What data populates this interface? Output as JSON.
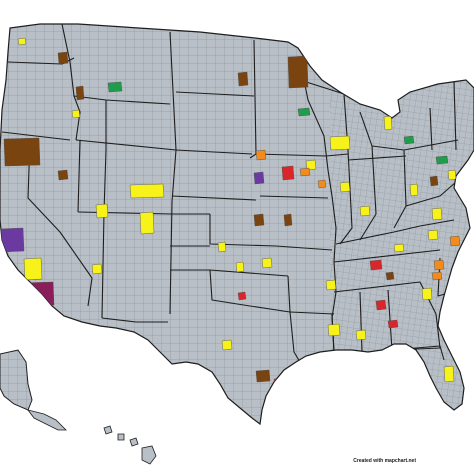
{
  "credit": "Created with mapchart.net",
  "colors": {
    "background": "#ffffff",
    "land": "#b8bfc6",
    "county_border": "#75808a",
    "state_border": "#1e1e1e",
    "yellow": "#f6f21a",
    "brown": "#7a4410",
    "green": "#1f9c4c",
    "orange": "#f28a1c",
    "red": "#d8262a",
    "purple": "#6a3aa0",
    "maroon": "#8a1e5a",
    "blue": "#1f3ca8"
  },
  "highlighted_counties": [
    {
      "region": "Washington",
      "color": "yellow"
    },
    {
      "region": "Montana",
      "color": "brown"
    },
    {
      "region": "Montana",
      "color": "green"
    },
    {
      "region": "Idaho",
      "color": "brown"
    },
    {
      "region": "Idaho",
      "color": "yellow"
    },
    {
      "region": "Oregon",
      "color": "brown"
    },
    {
      "region": "Nevada",
      "color": "brown"
    },
    {
      "region": "Nevada",
      "color": "yellow"
    },
    {
      "region": "California",
      "color": "purple"
    },
    {
      "region": "Arizona",
      "color": "yellow"
    },
    {
      "region": "Arizona",
      "color": "maroon"
    },
    {
      "region": "Utah",
      "color": "yellow"
    },
    {
      "region": "Colorado",
      "color": "yellow"
    },
    {
      "region": "New Mexico",
      "color": "yellow"
    },
    {
      "region": "North Dakota",
      "color": "brown"
    },
    {
      "region": "Minnesota",
      "color": "brown"
    },
    {
      "region": "Minnesota",
      "color": "green"
    },
    {
      "region": "Wisconsin",
      "color": "yellow"
    },
    {
      "region": "Iowa",
      "color": "red"
    },
    {
      "region": "Iowa",
      "color": "orange"
    },
    {
      "region": "Iowa",
      "color": "yellow"
    },
    {
      "region": "Nebraska",
      "color": "purple"
    },
    {
      "region": "Nebraska",
      "color": "orange"
    },
    {
      "region": "Kansas",
      "color": "brown"
    },
    {
      "region": "Kansas",
      "color": "yellow"
    },
    {
      "region": "Missouri",
      "color": "yellow"
    },
    {
      "region": "Missouri",
      "color": "brown"
    },
    {
      "region": "Illinois",
      "color": "yellow"
    },
    {
      "region": "Illinois",
      "color": "orange"
    },
    {
      "region": "Michigan",
      "color": "yellow"
    },
    {
      "region": "Michigan",
      "color": "green"
    },
    {
      "region": "Indiana",
      "color": "yellow"
    },
    {
      "region": "Ohio",
      "color": "yellow"
    },
    {
      "region": "Ohio",
      "color": "brown"
    },
    {
      "region": "Pennsylvania",
      "color": "green"
    },
    {
      "region": "Pennsylvania",
      "color": "yellow"
    },
    {
      "region": "West Virginia",
      "color": "yellow"
    },
    {
      "region": "Virginia",
      "color": "orange"
    },
    {
      "region": "North Carolina",
      "color": "yellow"
    },
    {
      "region": "North Carolina",
      "color": "orange"
    },
    {
      "region": "Tennessee",
      "color": "red"
    },
    {
      "region": "Tennessee",
      "color": "brown"
    },
    {
      "region": "Kentucky",
      "color": "yellow"
    },
    {
      "region": "Oklahoma",
      "color": "yellow"
    },
    {
      "region": "Oklahoma",
      "color": "red"
    },
    {
      "region": "Arkansas",
      "color": "yellow"
    },
    {
      "region": "Texas",
      "color": "yellow"
    },
    {
      "region": "Texas",
      "color": "brown"
    },
    {
      "region": "Texas",
      "color": "red"
    },
    {
      "region": "Louisiana",
      "color": "yellow"
    },
    {
      "region": "Mississippi",
      "color": "yellow"
    },
    {
      "region": "Alabama",
      "color": "red"
    },
    {
      "region": "Georgia",
      "color": "yellow"
    },
    {
      "region": "Georgia",
      "color": "orange"
    },
    {
      "region": "Georgia",
      "color": "red"
    },
    {
      "region": "South Carolina",
      "color": "orange"
    },
    {
      "region": "Florida",
      "color": "yellow"
    },
    {
      "region": "Florida",
      "color": "blue"
    },
    {
      "region": "Florida",
      "color": "green"
    }
  ]
}
